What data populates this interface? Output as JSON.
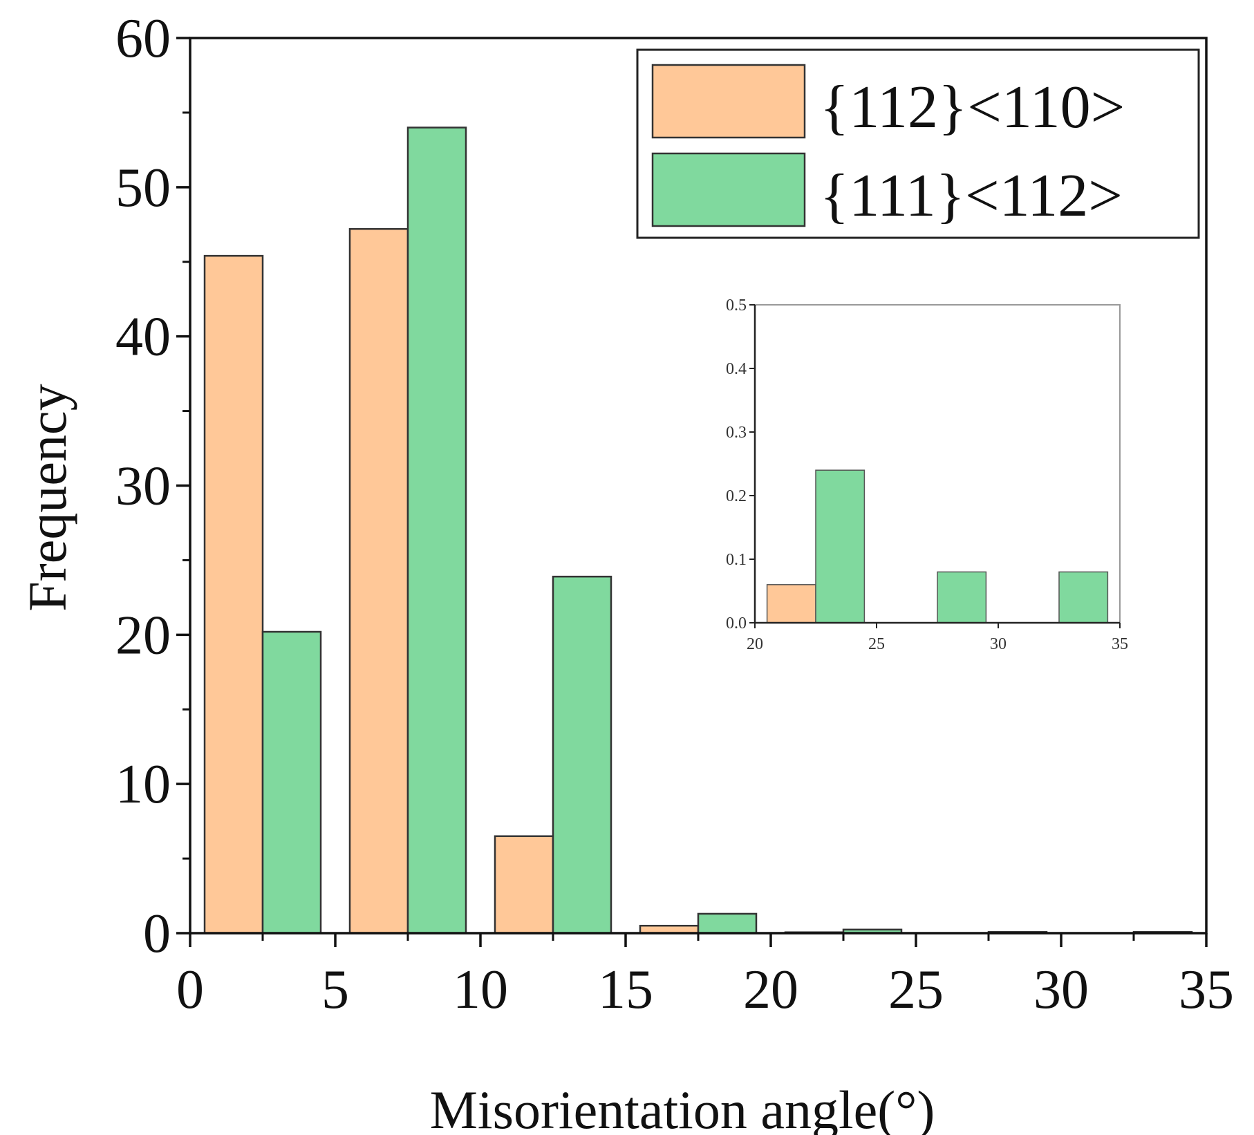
{
  "chart_data": {
    "type": "bar",
    "title": "",
    "xlabel": "Misorientation angle(°)",
    "ylabel": "Frequency",
    "xlim": [
      0,
      35
    ],
    "ylim": [
      0,
      60
    ],
    "x_ticks": [
      "0",
      "5",
      "10",
      "15",
      "20",
      "25",
      "30",
      "35"
    ],
    "y_ticks": [
      "0",
      "10",
      "20",
      "30",
      "40",
      "50",
      "60"
    ],
    "bin_width": 5,
    "bins": [
      [
        0,
        5
      ],
      [
        5,
        10
      ],
      [
        10,
        15
      ],
      [
        15,
        20
      ],
      [
        20,
        25
      ],
      [
        25,
        30
      ],
      [
        30,
        35
      ]
    ],
    "legend_position": "top-right",
    "series": [
      {
        "name": "{112}<110>",
        "color": "#ffc898",
        "values": [
          45.4,
          47.2,
          6.5,
          0.5,
          0.06,
          0,
          0
        ]
      },
      {
        "name": "{111}<112>",
        "color": "#80d99e",
        "values": [
          20.2,
          54.0,
          23.9,
          1.3,
          0.24,
          0.08,
          0.08
        ]
      }
    ],
    "inset": {
      "type": "bar",
      "xlim": [
        20,
        35
      ],
      "ylim": [
        0,
        0.5
      ],
      "x_ticks": [
        "20",
        "25",
        "30",
        "35"
      ],
      "y_ticks": [
        "0.0",
        "0.1",
        "0.2",
        "0.3",
        "0.4",
        "0.5"
      ],
      "bins": [
        [
          20,
          25
        ],
        [
          25,
          30
        ],
        [
          30,
          35
        ]
      ],
      "series": [
        {
          "name": "{112}<110>",
          "color": "#ffc898",
          "values": [
            0.06,
            0,
            0
          ]
        },
        {
          "name": "{111}<112>",
          "color": "#80d99e",
          "values": [
            0.24,
            0.08,
            0.08
          ]
        }
      ]
    }
  }
}
